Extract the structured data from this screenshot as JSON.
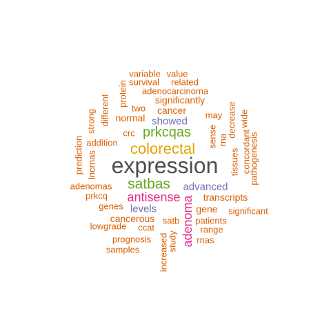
{
  "palette": {
    "gray": "#4d4d4d",
    "orange": "#d95f02",
    "gold": "#e6a400",
    "green": "#66a61e",
    "magenta": "#e7298a",
    "purple": "#7570b3"
  },
  "words": [
    {
      "text": "expression",
      "color": "gray"
    },
    {
      "text": "colorectal",
      "color": "gold"
    },
    {
      "text": "satbas",
      "color": "green"
    },
    {
      "text": "prkcqas",
      "color": "green"
    },
    {
      "text": "antisense",
      "color": "magenta"
    },
    {
      "text": "adenoma",
      "color": "magenta"
    },
    {
      "text": "advanced",
      "color": "purple"
    },
    {
      "text": "showed",
      "color": "purple"
    },
    {
      "text": "levels",
      "color": "purple"
    },
    {
      "text": "variable",
      "color": "orange"
    },
    {
      "text": "value",
      "color": "orange"
    },
    {
      "text": "survival",
      "color": "orange"
    },
    {
      "text": "related",
      "color": "orange"
    },
    {
      "text": "adenocarcinoma",
      "color": "orange"
    },
    {
      "text": "significantly",
      "color": "orange"
    },
    {
      "text": "two",
      "color": "orange"
    },
    {
      "text": "cancer",
      "color": "orange"
    },
    {
      "text": "normal",
      "color": "orange"
    },
    {
      "text": "crc",
      "color": "orange"
    },
    {
      "text": "addition",
      "color": "orange"
    },
    {
      "text": "adenomas",
      "color": "orange"
    },
    {
      "text": "prkcq",
      "color": "orange"
    },
    {
      "text": "genes",
      "color": "orange"
    },
    {
      "text": "cancerous",
      "color": "orange"
    },
    {
      "text": "lowgrade",
      "color": "orange"
    },
    {
      "text": "ccat",
      "color": "orange"
    },
    {
      "text": "satb",
      "color": "orange"
    },
    {
      "text": "prognosis",
      "color": "orange"
    },
    {
      "text": "samples",
      "color": "orange"
    },
    {
      "text": "transcripts",
      "color": "orange"
    },
    {
      "text": "gene",
      "color": "orange"
    },
    {
      "text": "significant",
      "color": "orange"
    },
    {
      "text": "patients",
      "color": "orange"
    },
    {
      "text": "range",
      "color": "orange"
    },
    {
      "text": "rnas",
      "color": "orange"
    },
    {
      "text": "may",
      "color": "orange"
    },
    {
      "text": "protein",
      "color": "orange"
    },
    {
      "text": "different",
      "color": "orange"
    },
    {
      "text": "strong",
      "color": "orange"
    },
    {
      "text": "prediction",
      "color": "orange"
    },
    {
      "text": "lncrnas",
      "color": "orange"
    },
    {
      "text": "increased",
      "color": "orange"
    },
    {
      "text": "study",
      "color": "orange"
    },
    {
      "text": "sense",
      "color": "orange"
    },
    {
      "text": "rna",
      "color": "orange"
    },
    {
      "text": "decrease",
      "color": "orange"
    },
    {
      "text": "tissues",
      "color": "orange"
    },
    {
      "text": "concordant",
      "color": "orange"
    },
    {
      "text": "wide",
      "color": "orange"
    },
    {
      "text": "pathogenesis",
      "color": "orange"
    }
  ]
}
